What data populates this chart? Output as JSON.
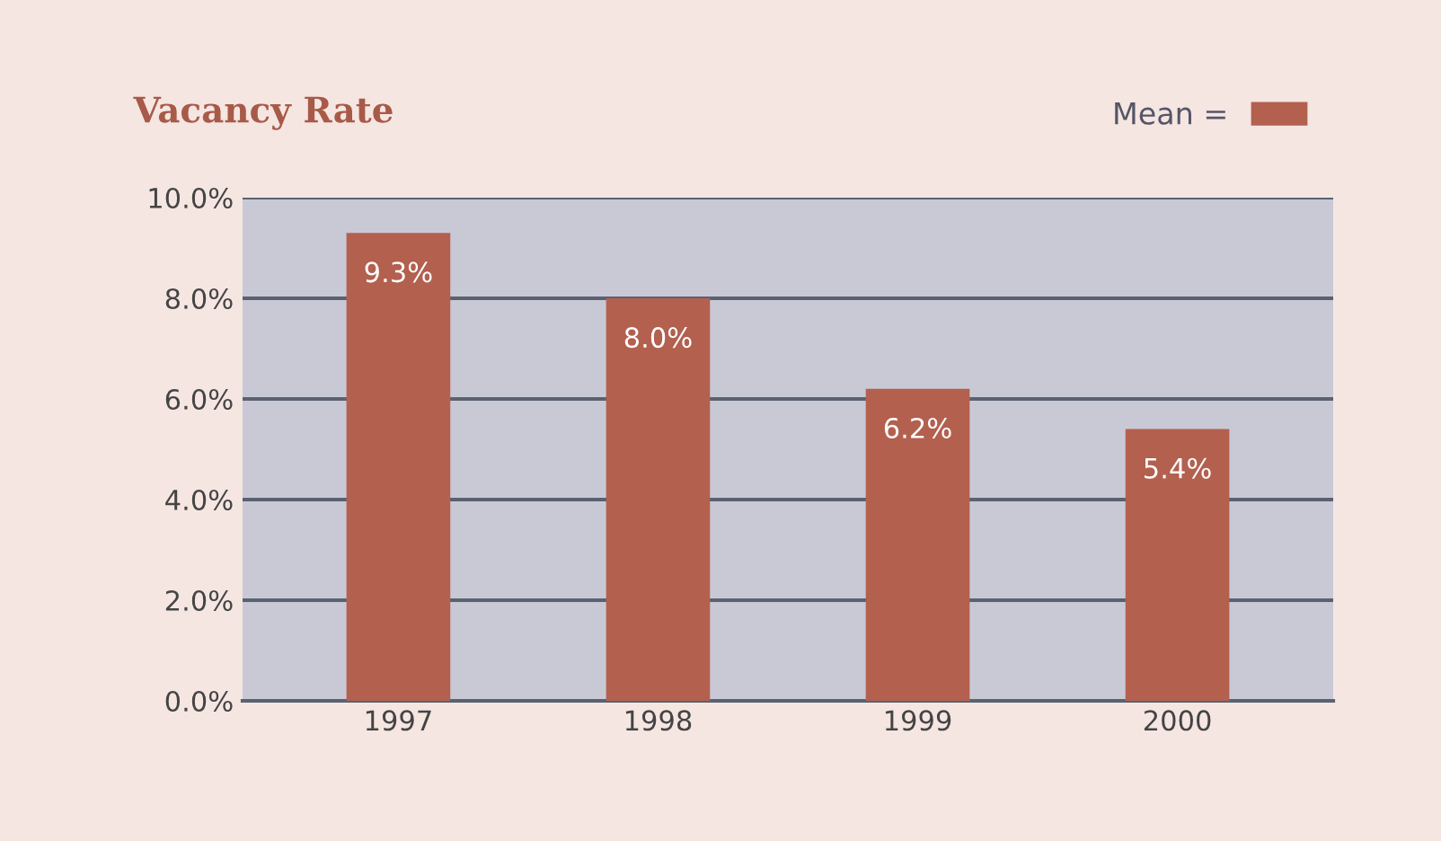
{
  "chart_data": {
    "type": "bar",
    "title": "Vacancy Rate",
    "categories": [
      "1997",
      "1998",
      "1999",
      "2000"
    ],
    "series": [
      {
        "name": "Mean =",
        "color": "#b3604f",
        "values": [
          9.3,
          8.0,
          6.2,
          5.4
        ],
        "value_labels": [
          "9.3%",
          "8.0%",
          "6.2%",
          "5.4%"
        ]
      }
    ],
    "ylim": [
      0,
      10
    ],
    "yticks": [
      {
        "value": 0,
        "label": "0.0%"
      },
      {
        "value": 2,
        "label": "2.0%"
      },
      {
        "value": 4,
        "label": "4.0%"
      },
      {
        "value": 6,
        "label": "6.0%"
      },
      {
        "value": 8,
        "label": "8.0%"
      },
      {
        "value": 10,
        "label": "10.0%"
      }
    ],
    "grid": "y",
    "legend": "top right"
  }
}
